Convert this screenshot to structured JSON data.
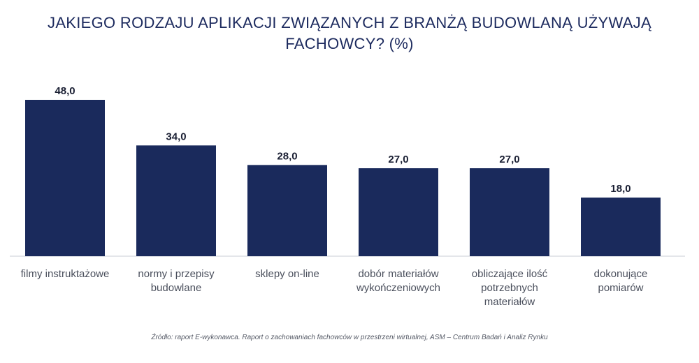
{
  "chart_data": {
    "type": "bar",
    "title": "JAKIEGO RODZAJU  APLIKACJI ZWIĄZANYCH Z BRANŻĄ BUDOWLANĄ UŻYWAJĄ\nFACHOWCY? (%)",
    "categories": [
      "filmy instruktażowe",
      "normy i przepisy budowlane",
      "sklepy on-line",
      "dobór materiałów wykończeniowych",
      "obliczające ilość potrzebnych materiałów",
      "dokonujące pomiarów"
    ],
    "category_lines": [
      [
        "filmy instruktażowe"
      ],
      [
        "normy i przepisy",
        "budowlane"
      ],
      [
        "sklepy on-line"
      ],
      [
        "dobór materiałów",
        "wykończeniowych"
      ],
      [
        "obliczające ilość",
        "potrzebnych",
        "materiałów"
      ],
      [
        "dokonujące",
        "pomiarów"
      ]
    ],
    "values": [
      48.0,
      34.0,
      28.0,
      27.0,
      27.0,
      18.0
    ],
    "value_labels": [
      "48,0",
      "34,0",
      "28,0",
      "27,0",
      "27,0",
      "18,0"
    ],
    "xlabel": "",
    "ylabel": "",
    "ylim": [
      0,
      48
    ],
    "grid": false,
    "bar_color": "#1a2a5c",
    "source": "Źródło: raport E-wykonawca. Raport o zachowaniach fachowców w przestrzeni wirtualnej, ASM – Centrum Badań i Analiz Rynku"
  }
}
